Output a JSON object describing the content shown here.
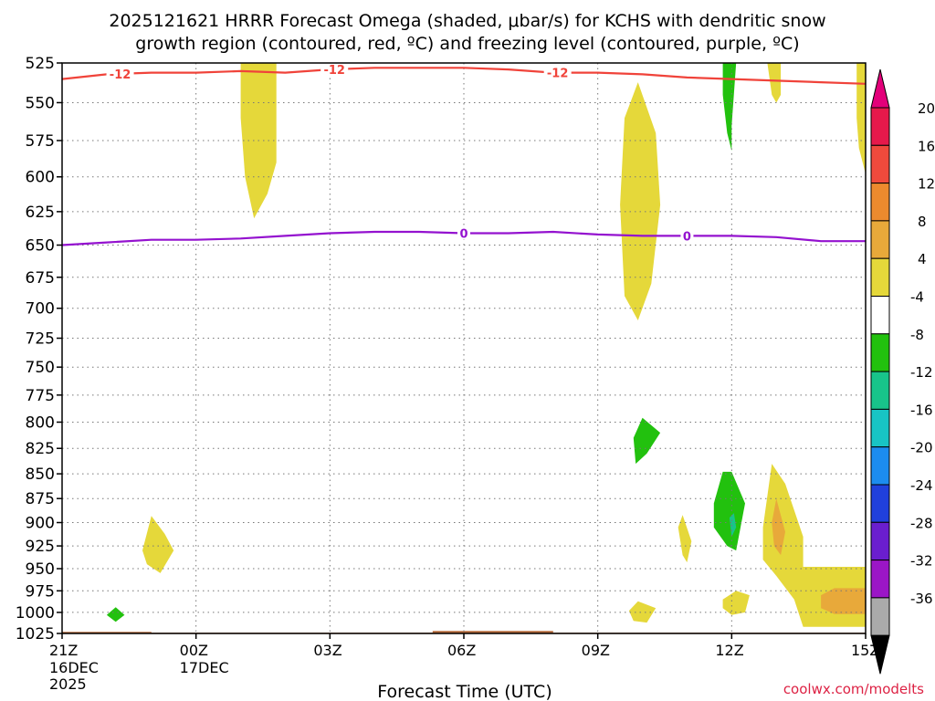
{
  "chart_data": {
    "type": "heatmap",
    "title_line1": "2025121621 HRRR Forecast Omega (shaded, μbar/s) for KCHS with dendritic snow",
    "title_line2": "growth region (contoured, red, ºC) and freezing level (contoured, purple, ºC)",
    "xlabel": "Forecast Time (UTC)",
    "watermark": "coolwx.com/modelts",
    "x_range_hours": [
      0,
      18
    ],
    "y_range_hpa": [
      525,
      1025
    ],
    "x_ticks": [
      {
        "hour": 0,
        "label": "21Z",
        "date": "16DEC",
        "year": "2025"
      },
      {
        "hour": 3,
        "label": "00Z",
        "date": "17DEC",
        "year": ""
      },
      {
        "hour": 6,
        "label": "03Z",
        "date": "",
        "year": ""
      },
      {
        "hour": 9,
        "label": "06Z",
        "date": "",
        "year": ""
      },
      {
        "hour": 12,
        "label": "09Z",
        "date": "",
        "year": ""
      },
      {
        "hour": 15,
        "label": "12Z",
        "date": "",
        "year": ""
      },
      {
        "hour": 18,
        "label": "15Z",
        "date": "",
        "year": ""
      }
    ],
    "y_ticks": [
      "525",
      "550",
      "575",
      "600",
      "625",
      "650",
      "675",
      "700",
      "725",
      "750",
      "775",
      "800",
      "825",
      "850",
      "875",
      "900",
      "925",
      "950",
      "975",
      "1000",
      "1025"
    ],
    "colorbar": {
      "labels": [
        "20",
        "16",
        "12",
        "8",
        "4",
        "-4",
        "-8",
        "-12",
        "-16",
        "-20",
        "-24",
        "-28",
        "-32",
        "-36"
      ],
      "colors": [
        "#e6194b",
        "#ef4a3c",
        "#ec8a2e",
        "#e8a93a",
        "#e5d83a",
        "#ffffff",
        "#22c10e",
        "#18c48a",
        "#18c4c4",
        "#1c8cef",
        "#2040dc",
        "#6a1ecf",
        "#9b16c6",
        "#aaaaaa"
      ],
      "top_arrow_color": "#e3007a",
      "bottom_arrow_color": "#000000"
    },
    "snow_growth_contour": {
      "label": "-12",
      "color": "#f0433a",
      "points": [
        [
          0,
          535
        ],
        [
          1.0,
          532
        ],
        [
          2.0,
          531
        ],
        [
          3.0,
          531
        ],
        [
          4.0,
          530
        ],
        [
          5.0,
          531
        ],
        [
          6.0,
          529
        ],
        [
          7.0,
          528
        ],
        [
          8.0,
          528
        ],
        [
          9.0,
          528
        ],
        [
          10.0,
          529
        ],
        [
          11.0,
          531
        ],
        [
          12.0,
          531
        ],
        [
          13.0,
          532
        ],
        [
          14.0,
          534
        ],
        [
          15.0,
          535
        ],
        [
          16.0,
          536
        ],
        [
          17.0,
          537
        ],
        [
          18.0,
          538
        ]
      ],
      "label_hours": [
        1.3,
        6.1,
        11.1
      ]
    },
    "freezing_level_contour": {
      "label": "0",
      "color": "#9412cf",
      "points": [
        [
          0,
          650
        ],
        [
          1.0,
          648
        ],
        [
          2.0,
          646
        ],
        [
          3.0,
          646
        ],
        [
          4.0,
          645
        ],
        [
          5.0,
          643
        ],
        [
          6.0,
          641
        ],
        [
          7.0,
          640
        ],
        [
          8.0,
          640
        ],
        [
          9.0,
          641
        ],
        [
          10.0,
          641
        ],
        [
          11.0,
          640
        ],
        [
          12.0,
          642
        ],
        [
          13.0,
          643
        ],
        [
          14.0,
          643
        ],
        [
          15.0,
          643
        ],
        [
          16.0,
          644
        ],
        [
          17.0,
          647
        ],
        [
          18.0,
          647
        ]
      ],
      "label_hours": [
        9.0,
        14.0
      ]
    },
    "omega_regions": [
      {
        "color": "#e5d83a",
        "points": [
          [
            4.0,
            525
          ],
          [
            4.8,
            525
          ],
          [
            4.8,
            590
          ],
          [
            4.6,
            612
          ],
          [
            4.3,
            630
          ],
          [
            4.1,
            600
          ],
          [
            4.0,
            560
          ]
        ]
      },
      {
        "color": "#e5d83a",
        "points": [
          [
            12.6,
            560
          ],
          [
            12.9,
            537
          ],
          [
            13.3,
            570
          ],
          [
            13.4,
            620
          ],
          [
            13.2,
            680
          ],
          [
            12.9,
            710
          ],
          [
            12.6,
            690
          ],
          [
            12.5,
            620
          ]
        ]
      },
      {
        "color": "#e5d83a",
        "points": [
          [
            15.8,
            525
          ],
          [
            16.1,
            525
          ],
          [
            16.1,
            545
          ],
          [
            16.0,
            550
          ],
          [
            15.9,
            545
          ]
        ]
      },
      {
        "color": "#e5d83a",
        "points": [
          [
            17.8,
            525
          ],
          [
            18.0,
            525
          ],
          [
            18.0,
            598
          ],
          [
            17.85,
            580
          ],
          [
            17.8,
            560
          ]
        ]
      },
      {
        "color": "#22c10e",
        "points": [
          [
            14.8,
            525
          ],
          [
            15.1,
            525
          ],
          [
            15.0,
            565
          ],
          [
            15.0,
            582
          ],
          [
            14.9,
            570
          ],
          [
            14.8,
            545
          ]
        ]
      },
      {
        "color": "#22c10e",
        "points": [
          [
            12.8,
            815
          ],
          [
            13.0,
            796
          ],
          [
            13.4,
            810
          ],
          [
            13.1,
            830
          ],
          [
            12.85,
            840
          ]
        ]
      },
      {
        "color": "#e5d83a",
        "points": [
          [
            1.8,
            930
          ],
          [
            2.0,
            893
          ],
          [
            2.3,
            912
          ],
          [
            2.5,
            930
          ],
          [
            2.2,
            955
          ],
          [
            1.9,
            945
          ]
        ]
      },
      {
        "color": "#22c10e",
        "points": [
          [
            1.0,
            1003
          ],
          [
            1.2,
            994
          ],
          [
            1.4,
            1003
          ],
          [
            1.2,
            1011
          ]
        ]
      },
      {
        "color": "#e5d83a",
        "points": [
          [
            13.8,
            905
          ],
          [
            13.9,
            892
          ],
          [
            14.1,
            920
          ],
          [
            14.0,
            943
          ],
          [
            13.9,
            935
          ]
        ]
      },
      {
        "color": "#22c10e",
        "points": [
          [
            14.6,
            880
          ],
          [
            14.8,
            848
          ],
          [
            15.0,
            848
          ],
          [
            15.3,
            880
          ],
          [
            15.1,
            930
          ],
          [
            14.9,
            925
          ],
          [
            14.6,
            905
          ]
        ]
      },
      {
        "color": "#18c48a",
        "points": [
          [
            14.95,
            895
          ],
          [
            15.05,
            890
          ],
          [
            15.1,
            905
          ],
          [
            15.0,
            915
          ]
        ]
      },
      {
        "color": "#e5d83a",
        "points": [
          [
            15.7,
            905
          ],
          [
            15.9,
            840
          ],
          [
            16.2,
            860
          ],
          [
            16.6,
            915
          ],
          [
            16.6,
            948
          ],
          [
            18.0,
            948
          ],
          [
            18.0,
            1017
          ],
          [
            16.6,
            1017
          ],
          [
            16.4,
            985
          ],
          [
            16.0,
            958
          ],
          [
            15.7,
            940
          ]
        ]
      },
      {
        "color": "#e8a93a",
        "points": [
          [
            15.9,
            900
          ],
          [
            16.0,
            875
          ],
          [
            16.2,
            910
          ],
          [
            16.1,
            935
          ],
          [
            15.95,
            925
          ]
        ]
      },
      {
        "color": "#e8a93a",
        "points": [
          [
            17.0,
            980
          ],
          [
            17.3,
            972
          ],
          [
            18.0,
            972
          ],
          [
            18.0,
            1002
          ],
          [
            17.3,
            1002
          ],
          [
            17.0,
            995
          ]
        ]
      },
      {
        "color": "#e5d83a",
        "points": [
          [
            14.8,
            985
          ],
          [
            15.1,
            975
          ],
          [
            15.4,
            980
          ],
          [
            15.3,
            1000
          ],
          [
            15.0,
            1003
          ],
          [
            14.8,
            995
          ]
        ]
      },
      {
        "color": "#e5d83a",
        "points": [
          [
            12.7,
            998
          ],
          [
            12.9,
            987
          ],
          [
            13.3,
            995
          ],
          [
            13.1,
            1012
          ],
          [
            12.8,
            1010
          ]
        ]
      }
    ],
    "terrain": {
      "color": "#b46a3c",
      "points": [
        [
          0,
          1023
        ],
        [
          2.0,
          1023
        ],
        [
          2.0,
          1024
        ],
        [
          8.3,
          1024
        ],
        [
          8.3,
          1022
        ],
        [
          11.0,
          1022
        ],
        [
          11.0,
          1024
        ],
        [
          18.0,
          1024
        ],
        [
          18.0,
          1025
        ],
        [
          0,
          1025
        ]
      ]
    }
  }
}
